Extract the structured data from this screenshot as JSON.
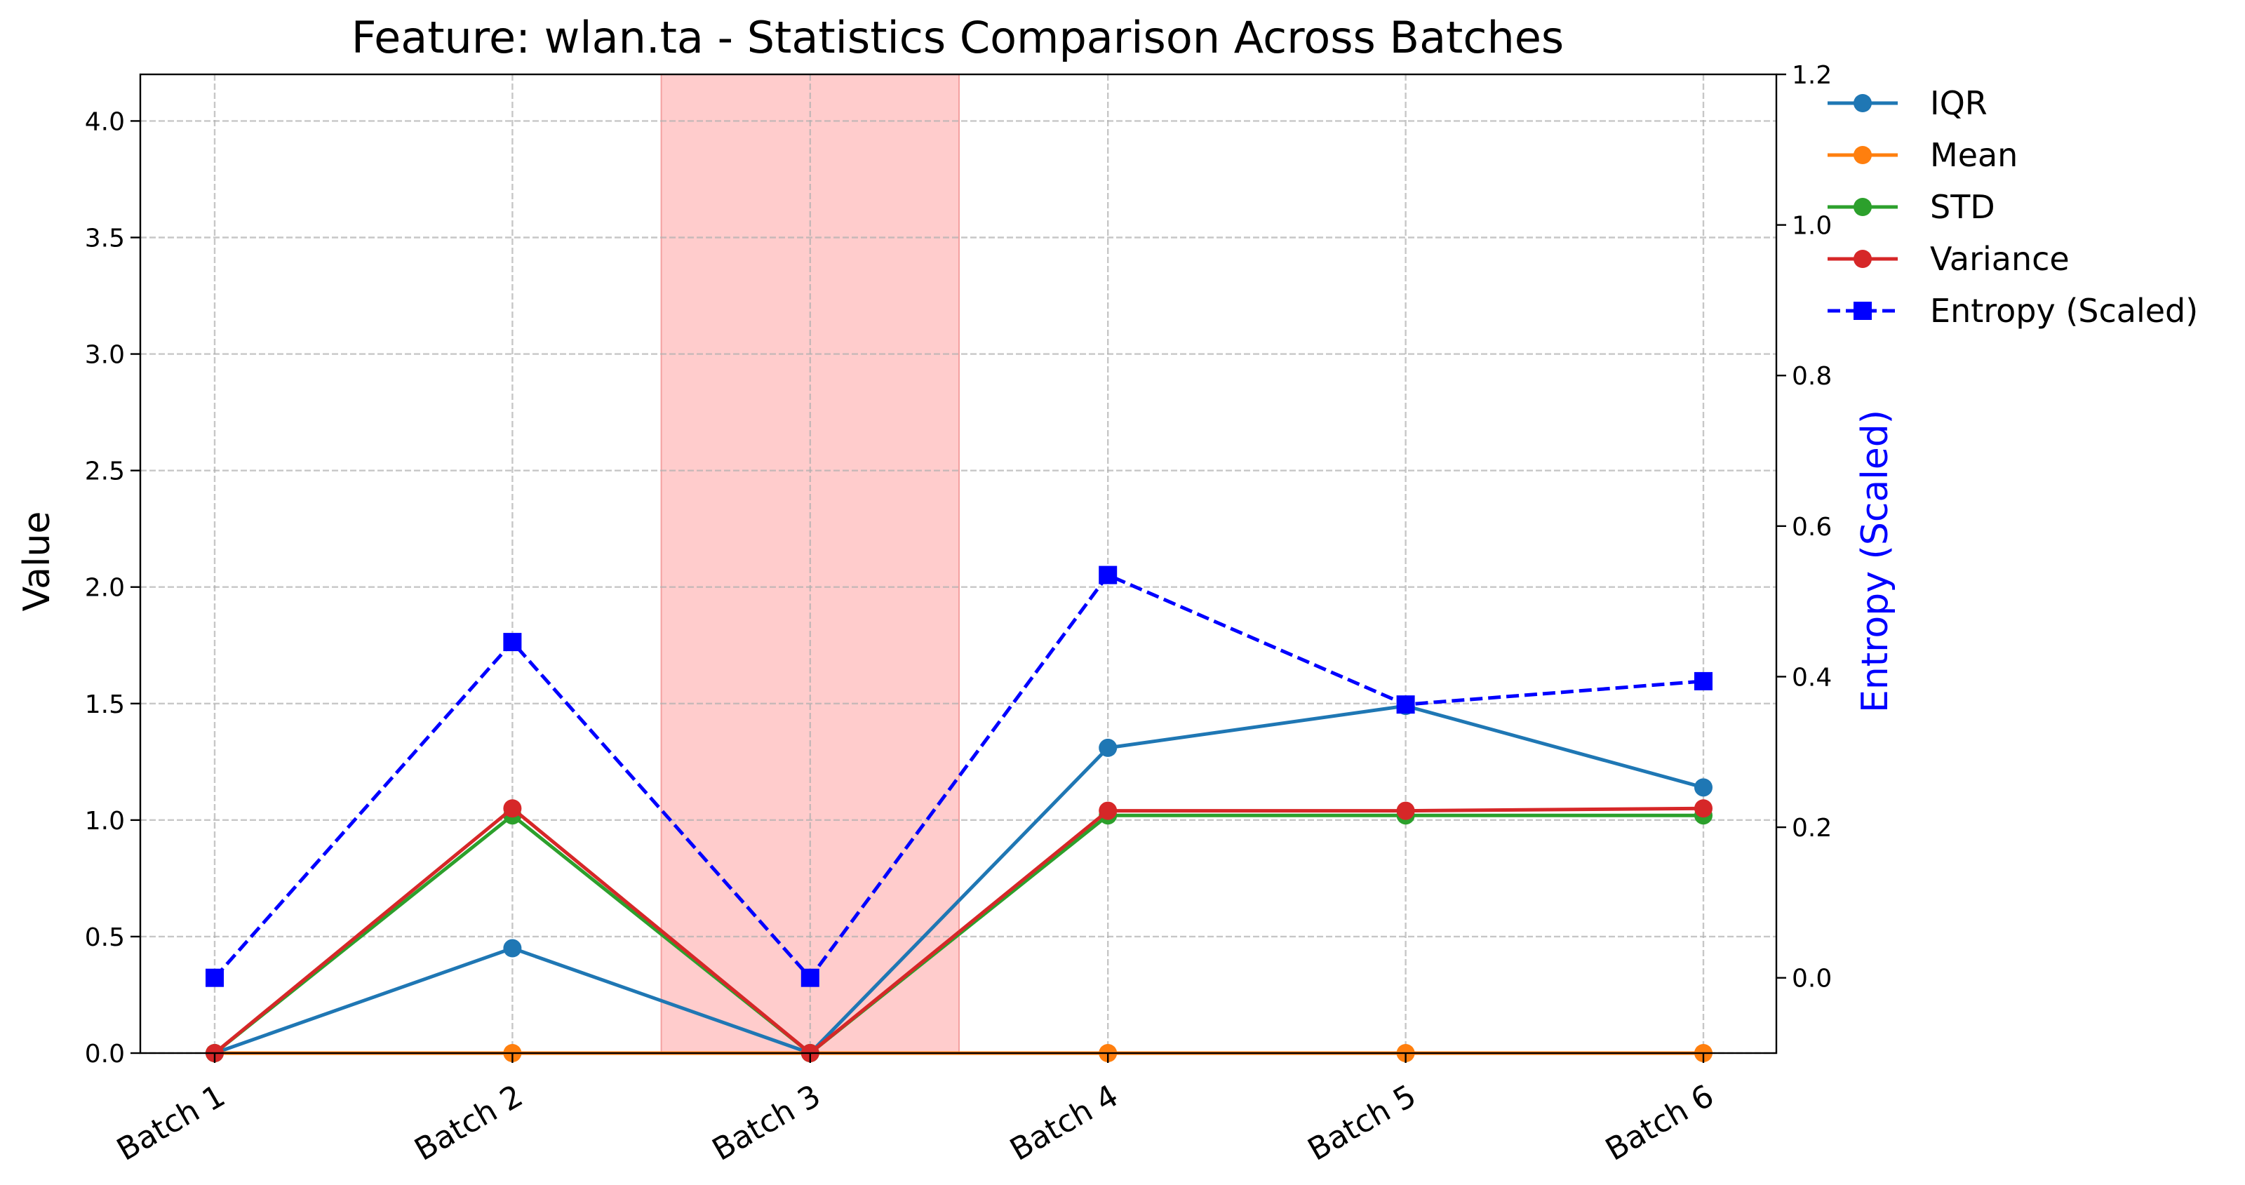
{
  "chart_data": {
    "type": "line",
    "title": "Feature: wlan.ta - Statistics Comparison Across Batches",
    "xlabel": "",
    "ylabel": "Value",
    "ylabel_right": "Entropy (Scaled)",
    "categories": [
      "Batch 1",
      "Batch 2",
      "Batch 3",
      "Batch 4",
      "Batch 5",
      "Batch 6"
    ],
    "ylim": [
      0,
      4.2
    ],
    "yticks": [
      "0.0",
      "0.5",
      "1.0",
      "1.5",
      "2.0",
      "2.5",
      "3.0",
      "3.5",
      "4.0"
    ],
    "ylim_right": [
      -0.1,
      1.2
    ],
    "yticks_right": [
      "0.0",
      "0.2",
      "0.4",
      "0.6",
      "0.8",
      "1.0",
      "1.2"
    ],
    "grid": true,
    "legend_position": "outside-top-right",
    "highlight_band": {
      "from_category": "Batch 3",
      "color": "#ffcccc"
    },
    "series": [
      {
        "name": "IQR",
        "axis": "left",
        "color": "#1f77b4",
        "marker": "circle",
        "dashed": false,
        "values": [
          0.0,
          0.45,
          0.0,
          1.31,
          1.49,
          1.14
        ]
      },
      {
        "name": "Mean",
        "axis": "left",
        "color": "#ff7f0e",
        "marker": "circle",
        "dashed": false,
        "values": [
          0.0,
          0.0,
          0.0,
          0.0,
          0.0,
          0.0
        ]
      },
      {
        "name": "STD",
        "axis": "left",
        "color": "#2ca02c",
        "marker": "circle",
        "dashed": false,
        "values": [
          0.0,
          1.02,
          0.0,
          1.02,
          1.02,
          1.02
        ]
      },
      {
        "name": "Variance",
        "axis": "left",
        "color": "#d62728",
        "marker": "circle",
        "dashed": false,
        "values": [
          0.0,
          1.05,
          0.0,
          1.04,
          1.04,
          1.05
        ]
      },
      {
        "name": "Entropy (Scaled)",
        "axis": "right",
        "color": "#0000ff",
        "marker": "square",
        "dashed": true,
        "values": [
          0.0,
          0.446,
          0.0,
          0.535,
          0.363,
          0.394
        ]
      }
    ]
  }
}
